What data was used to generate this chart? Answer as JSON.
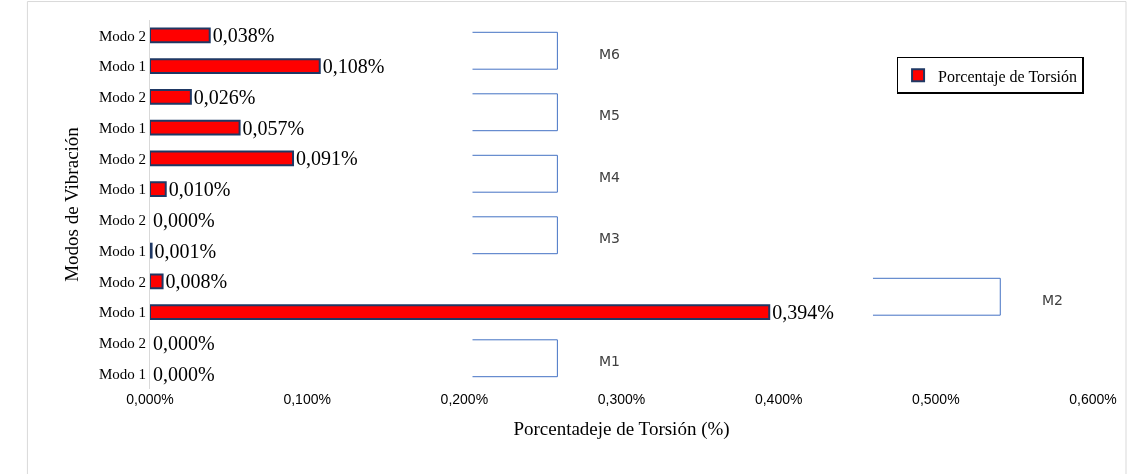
{
  "chart_data": {
    "type": "bar",
    "orientation": "horizontal",
    "xlabel": "Porcentadeje de Torsión (%)",
    "ylabel": "Modos de Vibración",
    "categories": [
      "Modo 2",
      "Modo 1",
      "Modo 2",
      "Modo 1",
      "Modo 2",
      "Modo 1",
      "Modo 2",
      "Modo 1",
      "Modo 2",
      "Modo 1",
      "Modo 2",
      "Modo 1"
    ],
    "series": [
      {
        "name": "Porcentaje de Torsión",
        "color": "#ff0000",
        "values": [
          0.038,
          0.108,
          0.026,
          0.057,
          0.091,
          0.01,
          0.0,
          0.001,
          0.008,
          0.394,
          0.0,
          0.0
        ],
        "value_labels": [
          "0,038%",
          "0,108%",
          "0,026%",
          "0,057%",
          "0,091%",
          "0,010%",
          "0,000%",
          "0,001%",
          "0,008%",
          "0,394%",
          "0,000%",
          "0,000%"
        ]
      }
    ],
    "xlim": [
      0,
      0.6
    ],
    "xticks": [
      {
        "value": 0,
        "label": "0,000%"
      },
      {
        "value": 0.1,
        "label": "0,100%"
      },
      {
        "value": 0.2,
        "label": "0,200%"
      },
      {
        "value": 0.3,
        "label": "0,300%"
      },
      {
        "value": 0.4,
        "label": "0,400%"
      },
      {
        "value": 0.5,
        "label": "0,500%"
      },
      {
        "value": 0.6,
        "label": "0,600%"
      }
    ],
    "annotations": [
      "M6",
      "M5",
      "M4",
      "M3",
      "M2",
      "M1"
    ],
    "legend": "top right"
  }
}
